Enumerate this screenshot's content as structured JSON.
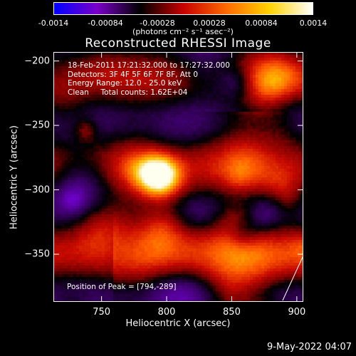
{
  "colorbar": {
    "ticks": [
      "-0.0014",
      "-0.00084",
      "-0.00028",
      "0.00028",
      "0.00084",
      "0.0014"
    ],
    "label": "(photons cm⁻² s⁻¹ asec⁻²)",
    "colors": [
      "#0000ff",
      "#7a00c8",
      "#000000",
      "#c80000",
      "#ff6a00",
      "#ffd200",
      "#ffffff"
    ]
  },
  "chart_data": {
    "type": "heatmap",
    "title": "Reconstructed RHESSI Image",
    "xlabel": "Heliocentric X (arcsec)",
    "ylabel": "Heliocentric Y (arcsec)",
    "xlim": [
      713,
      905
    ],
    "ylim": [
      -387,
      -193
    ],
    "xticks": [
      750,
      800,
      850,
      900
    ],
    "yticks": [
      -200,
      -250,
      -300,
      -350
    ],
    "value_range": [
      -0.0014,
      0.0014
    ],
    "peak": {
      "x": 794,
      "y": -289
    },
    "annotations": {
      "info_lines": [
        "18-Feb-2011 17:21:32.000 to 17:27:32.000",
        "Detectors: 3F 4F 5F 6F 7F 8F, Att 0",
        "Energy Range: 12.0 - 25.0 keV",
        "Clean     Total counts: 1.62E+04"
      ],
      "peak_text": "Position of Peak = [794,-289]"
    }
  },
  "datestamp": "9-May-2022 04:07"
}
